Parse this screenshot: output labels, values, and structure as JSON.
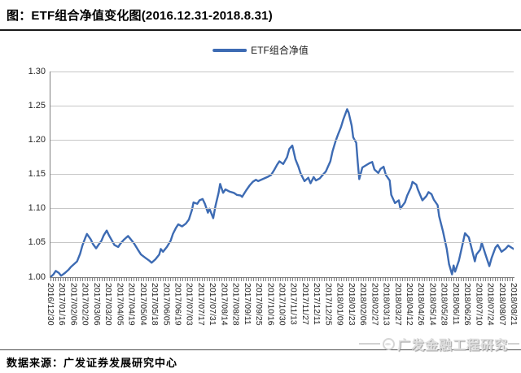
{
  "figure": {
    "title": "图：ETF组合净值变化图(2016.12.31-2018.8.31)",
    "source_note": "数据来源：广发证券发展研究中心",
    "watermark_text": "广发金融工程研究"
  },
  "chart_data": {
    "type": "line",
    "title": "图：ETF组合净值变化图(2016.12.31-2018.8.31)",
    "legend": [
      "ETF组合净值"
    ],
    "legend_position": "top-center",
    "grid": true,
    "line_color": "#3d6bb3",
    "grid_color": "#c6c6c6",
    "ylim": [
      1.0,
      1.3
    ],
    "ytick_step": 0.05,
    "ytick_labels": [
      "1.30",
      "1.25",
      "1.20",
      "1.15",
      "1.10",
      "1.05",
      "1.00"
    ],
    "x_range": [
      "2016/12/30",
      "2018/08/31"
    ],
    "xtick_labels": [
      "2016/12/30",
      "2017/01/16",
      "2017/02/06",
      "2017/02/20",
      "2017/03/06",
      "2017/03/20",
      "2017/04/05",
      "2017/04/19",
      "2017/05/04",
      "2017/05/18",
      "2017/06/05",
      "2017/06/19",
      "2017/07/03",
      "2017/07/17",
      "2017/07/31",
      "2017/08/14",
      "2017/08/28",
      "2017/09/11",
      "2017/09/25",
      "2017/10/16",
      "2017/10/30",
      "2017/11/13",
      "2017/11/27",
      "2017/12/11",
      "2017/12/25",
      "2018/01/09",
      "2018/01/23",
      "2018/02/06",
      "2018/02/27",
      "2018/03/13",
      "2018/03/27",
      "2018/04/12",
      "2018/04/26",
      "2018/05/14",
      "2018/05/28",
      "2018/06/11",
      "2018/06/26",
      "2018/07/10",
      "2018/07/24",
      "2018/08/07",
      "2018/08/21"
    ],
    "series": [
      {
        "name": "ETF组合净值",
        "points": [
          [
            "2016/12/30",
            1.0
          ],
          [
            "2017/01/03",
            1.004
          ],
          [
            "2017/01/06",
            1.009
          ],
          [
            "2017/01/10",
            1.006
          ],
          [
            "2017/01/13",
            1.002
          ],
          [
            "2017/01/18",
            1.006
          ],
          [
            "2017/01/23",
            1.011
          ],
          [
            "2017/01/26",
            1.015
          ],
          [
            "2017/02/03",
            1.023
          ],
          [
            "2017/02/07",
            1.034
          ],
          [
            "2017/02/10",
            1.046
          ],
          [
            "2017/02/14",
            1.058
          ],
          [
            "2017/02/16",
            1.063
          ],
          [
            "2017/02/21",
            1.055
          ],
          [
            "2017/02/24",
            1.048
          ],
          [
            "2017/02/28",
            1.042
          ],
          [
            "2017/03/03",
            1.047
          ],
          [
            "2017/03/07",
            1.053
          ],
          [
            "2017/03/10",
            1.061
          ],
          [
            "2017/03/14",
            1.068
          ],
          [
            "2017/03/17",
            1.061
          ],
          [
            "2017/03/21",
            1.053
          ],
          [
            "2017/03/24",
            1.047
          ],
          [
            "2017/03/29",
            1.044
          ],
          [
            "2017/04/01",
            1.049
          ],
          [
            "2017/04/06",
            1.055
          ],
          [
            "2017/04/11",
            1.06
          ],
          [
            "2017/04/14",
            1.056
          ],
          [
            "2017/04/19",
            1.049
          ],
          [
            "2017/04/24",
            1.04
          ],
          [
            "2017/04/28",
            1.033
          ],
          [
            "2017/05/04",
            1.028
          ],
          [
            "2017/05/09",
            1.024
          ],
          [
            "2017/05/12",
            1.021
          ],
          [
            "2017/05/17",
            1.026
          ],
          [
            "2017/05/22",
            1.033
          ],
          [
            "2017/05/24",
            1.041
          ],
          [
            "2017/05/27",
            1.037
          ],
          [
            "2017/06/01",
            1.044
          ],
          [
            "2017/06/06",
            1.053
          ],
          [
            "2017/06/09",
            1.063
          ],
          [
            "2017/06/13",
            1.072
          ],
          [
            "2017/06/16",
            1.077
          ],
          [
            "2017/06/21",
            1.074
          ],
          [
            "2017/06/26",
            1.078
          ],
          [
            "2017/06/30",
            1.084
          ],
          [
            "2017/07/04",
            1.098
          ],
          [
            "2017/07/06",
            1.109
          ],
          [
            "2017/07/11",
            1.107
          ],
          [
            "2017/07/14",
            1.112
          ],
          [
            "2017/07/18",
            1.114
          ],
          [
            "2017/07/21",
            1.107
          ],
          [
            "2017/07/25",
            1.094
          ],
          [
            "2017/07/27",
            1.1
          ],
          [
            "2017/08/01",
            1.086
          ],
          [
            "2017/08/04",
            1.104
          ],
          [
            "2017/08/08",
            1.123
          ],
          [
            "2017/08/10",
            1.136
          ],
          [
            "2017/08/14",
            1.123
          ],
          [
            "2017/08/17",
            1.128
          ],
          [
            "2017/08/22",
            1.125
          ],
          [
            "2017/08/28",
            1.123
          ],
          [
            "2017/09/01",
            1.12
          ],
          [
            "2017/09/06",
            1.119
          ],
          [
            "2017/09/08",
            1.117
          ],
          [
            "2017/09/13",
            1.126
          ],
          [
            "2017/09/18",
            1.134
          ],
          [
            "2017/09/22",
            1.139
          ],
          [
            "2017/09/26",
            1.142
          ],
          [
            "2017/09/29",
            1.14
          ],
          [
            "2017/10/11",
            1.146
          ],
          [
            "2017/10/16",
            1.149
          ],
          [
            "2017/10/20",
            1.156
          ],
          [
            "2017/10/24",
            1.164
          ],
          [
            "2017/10/27",
            1.169
          ],
          [
            "2017/11/01",
            1.165
          ],
          [
            "2017/11/06",
            1.175
          ],
          [
            "2017/11/09",
            1.187
          ],
          [
            "2017/11/13",
            1.192
          ],
          [
            "2017/11/15",
            1.182
          ],
          [
            "2017/11/17",
            1.172
          ],
          [
            "2017/11/21",
            1.161
          ],
          [
            "2017/11/24",
            1.151
          ],
          [
            "2017/11/29",
            1.14
          ],
          [
            "2017/12/04",
            1.145
          ],
          [
            "2017/12/07",
            1.137
          ],
          [
            "2017/12/11",
            1.146
          ],
          [
            "2017/12/14",
            1.141
          ],
          [
            "2017/12/19",
            1.144
          ],
          [
            "2017/12/22",
            1.148
          ],
          [
            "2017/12/27",
            1.154
          ],
          [
            "2018/01/02",
            1.169
          ],
          [
            "2018/01/05",
            1.184
          ],
          [
            "2018/01/09",
            1.199
          ],
          [
            "2018/01/12",
            1.208
          ],
          [
            "2018/01/16",
            1.219
          ],
          [
            "2018/01/19",
            1.23
          ],
          [
            "2018/01/24",
            1.245
          ],
          [
            "2018/01/26",
            1.24
          ],
          [
            "2018/01/30",
            1.221
          ],
          [
            "2018/02/01",
            1.204
          ],
          [
            "2018/02/05",
            1.196
          ],
          [
            "2018/02/07",
            1.167
          ],
          [
            "2018/02/09",
            1.143
          ],
          [
            "2018/02/13",
            1.16
          ],
          [
            "2018/02/22",
            1.166
          ],
          [
            "2018/02/26",
            1.168
          ],
          [
            "2018/03/01",
            1.157
          ],
          [
            "2018/03/06",
            1.152
          ],
          [
            "2018/03/09",
            1.158
          ],
          [
            "2018/03/13",
            1.161
          ],
          [
            "2018/03/16",
            1.149
          ],
          [
            "2018/03/21",
            1.141
          ],
          [
            "2018/03/23",
            1.12
          ],
          [
            "2018/03/28",
            1.108
          ],
          [
            "2018/04/02",
            1.112
          ],
          [
            "2018/04/04",
            1.1
          ],
          [
            "2018/04/10",
            1.109
          ],
          [
            "2018/04/13",
            1.119
          ],
          [
            "2018/04/18",
            1.131
          ],
          [
            "2018/04/20",
            1.139
          ],
          [
            "2018/04/25",
            1.135
          ],
          [
            "2018/04/27",
            1.128
          ],
          [
            "2018/05/03",
            1.112
          ],
          [
            "2018/05/08",
            1.118
          ],
          [
            "2018/05/11",
            1.124
          ],
          [
            "2018/05/15",
            1.121
          ],
          [
            "2018/05/18",
            1.113
          ],
          [
            "2018/05/23",
            1.105
          ],
          [
            "2018/05/25",
            1.089
          ],
          [
            "2018/05/30",
            1.067
          ],
          [
            "2018/06/04",
            1.041
          ],
          [
            "2018/06/07",
            1.019
          ],
          [
            "2018/06/11",
            1.004
          ],
          [
            "2018/06/13",
            1.017
          ],
          [
            "2018/06/15",
            1.008
          ],
          [
            "2018/06/20",
            1.024
          ],
          [
            "2018/06/25",
            1.049
          ],
          [
            "2018/06/28",
            1.064
          ],
          [
            "2018/07/03",
            1.058
          ],
          [
            "2018/07/06",
            1.045
          ],
          [
            "2018/07/11",
            1.023
          ],
          [
            "2018/07/13",
            1.033
          ],
          [
            "2018/07/18",
            1.04
          ],
          [
            "2018/07/20",
            1.05
          ],
          [
            "2018/07/25",
            1.033
          ],
          [
            "2018/07/30",
            1.016
          ],
          [
            "2018/08/02",
            1.028
          ],
          [
            "2018/08/07",
            1.043
          ],
          [
            "2018/08/10",
            1.047
          ],
          [
            "2018/08/15",
            1.037
          ],
          [
            "2018/08/20",
            1.041
          ],
          [
            "2018/08/24",
            1.046
          ],
          [
            "2018/08/31",
            1.041
          ]
        ]
      }
    ]
  }
}
